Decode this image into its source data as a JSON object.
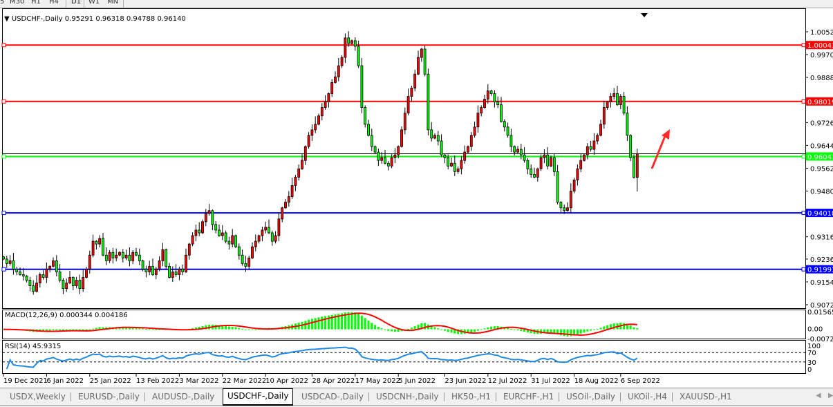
{
  "toolbar": {
    "items": [
      "5",
      "M30",
      "H1",
      "H4",
      "D1",
      "W1",
      "MN"
    ],
    "active": "D1"
  },
  "chart_header": {
    "symbol": "USDCHF-,Daily",
    "open": "0.95291",
    "high": "0.96318",
    "low": "0.94788",
    "close": "0.96140"
  },
  "colors": {
    "bull_candle": "#ff0000",
    "bear_candle": "#00ff00",
    "candle_outline": "#000000",
    "macd_histogram": "#00ff00",
    "macd_signal": "#ff0000",
    "rsi_line": "#1e88e5"
  },
  "chart_data": {
    "type": "candlestick",
    "ylim": [
      0.90596,
      1.01363
    ],
    "price_ticks": [
      "1.00520",
      "0.99700",
      "0.98880",
      "0.97260",
      "0.96440",
      "0.95620",
      "0.94800",
      "0.93160",
      "0.92360",
      "0.91540",
      "0.90720"
    ],
    "last_bar": {
      "open": 0.95291,
      "high": 0.96318,
      "low": 0.94788,
      "close": 0.9614
    },
    "closes": [
      0.9236,
      0.922,
      0.923,
      0.92,
      0.919,
      0.918,
      0.9175,
      0.916,
      0.914,
      0.912,
      0.915,
      0.918,
      0.917,
      0.92,
      0.921,
      0.923,
      0.919,
      0.916,
      0.913,
      0.915,
      0.917,
      0.914,
      0.916,
      0.913,
      0.917,
      0.92,
      0.925,
      0.93,
      0.929,
      0.931,
      0.925,
      0.923,
      0.926,
      0.924,
      0.925,
      0.926,
      0.924,
      0.925,
      0.923,
      0.926,
      0.925,
      0.923,
      0.92,
      0.919,
      0.921,
      0.918,
      0.92,
      0.923,
      0.927,
      0.921,
      0.917,
      0.919,
      0.918,
      0.92,
      0.919,
      0.925,
      0.929,
      0.932,
      0.934,
      0.933,
      0.937,
      0.94,
      0.941,
      0.936,
      0.934,
      0.932,
      0.933,
      0.93,
      0.929,
      0.932,
      0.928,
      0.925,
      0.922,
      0.921,
      0.924,
      0.928,
      0.93,
      0.932,
      0.934,
      0.935,
      0.933,
      0.93,
      0.932,
      0.938,
      0.942,
      0.944,
      0.946,
      0.95,
      0.953,
      0.956,
      0.959,
      0.964,
      0.968,
      0.97,
      0.972,
      0.975,
      0.978,
      0.98,
      0.983,
      0.987,
      0.989,
      0.993,
      0.996,
      1.003,
      1.001,
      1.002,
      1.0,
      0.993,
      0.978,
      0.972,
      0.968,
      0.964,
      0.962,
      0.959,
      0.96,
      0.958,
      0.957,
      0.96,
      0.961,
      0.964,
      0.97,
      0.976,
      0.982,
      0.985,
      0.99,
      0.996,
      0.999,
      0.99,
      0.97,
      0.967,
      0.968,
      0.966,
      0.961,
      0.96,
      0.957,
      0.958,
      0.955,
      0.956,
      0.959,
      0.962,
      0.964,
      0.968,
      0.971,
      0.976,
      0.978,
      0.981,
      0.984,
      0.983,
      0.98,
      0.979,
      0.973,
      0.971,
      0.968,
      0.964,
      0.962,
      0.963,
      0.961,
      0.959,
      0.956,
      0.954,
      0.953,
      0.956,
      0.96,
      0.961,
      0.957,
      0.96,
      0.955,
      0.944,
      0.942,
      0.941,
      0.942,
      0.948,
      0.952,
      0.956,
      0.959,
      0.961,
      0.964,
      0.963,
      0.966,
      0.968,
      0.972,
      0.978,
      0.98,
      0.982,
      0.983,
      0.979,
      0.982,
      0.976,
      0.968,
      0.96,
      0.9529,
      0.9614
    ],
    "date_ticks": [
      {
        "bar": 0,
        "label": "19 Dec 2021"
      },
      {
        "bar": 13,
        "label": "6 Jan 2022"
      },
      {
        "bar": 26,
        "label": "25 Jan 2022"
      },
      {
        "bar": 40,
        "label": "13 Feb 2022"
      },
      {
        "bar": 53,
        "label": "3 Mar 2022"
      },
      {
        "bar": 66,
        "label": "22 Mar 2022"
      },
      {
        "bar": 79,
        "label": "10 Apr 2022"
      },
      {
        "bar": 93,
        "label": "28 Apr 2022"
      },
      {
        "bar": 106,
        "label": "17 May 2022"
      },
      {
        "bar": 119,
        "label": "5 Jun 2022"
      },
      {
        "bar": 133,
        "label": "23 Jun 2022"
      },
      {
        "bar": 146,
        "label": "12 Jul 2022"
      },
      {
        "bar": 159,
        "label": "31 Jul 2022"
      },
      {
        "bar": 172,
        "label": "18 Aug 2022"
      },
      {
        "bar": 186,
        "label": "6 Sep 2022"
      }
    ],
    "levels": [
      {
        "price": 1.00043,
        "label": "1.00043",
        "color": "#ff0000"
      },
      {
        "price": 0.98019,
        "label": "0.98019",
        "color": "#ff0000"
      },
      {
        "price": 0.96043,
        "label": "0.96043",
        "color": "#00ff00"
      },
      {
        "price": 0.94018,
        "label": "0.94018",
        "color": "#0000ff"
      },
      {
        "price": 0.91993,
        "label": "0.91993",
        "color": "#0000ff"
      }
    ],
    "annotation": {
      "type": "arrow",
      "direction": "up",
      "color": "#ff2a2a"
    }
  },
  "macd": {
    "label": "MACD(12,26,9) 0.000344 0.004186",
    "axis": [
      "0.015654",
      "0.00",
      "-0.00725"
    ],
    "ylim": [
      -0.0085,
      0.0175
    ]
  },
  "rsi": {
    "label": "RSI(14) 45.9315",
    "axis": [
      "100",
      "70",
      "30",
      "0"
    ],
    "levels": [
      70,
      30
    ]
  },
  "tabs": [
    {
      "label": "USDX,Weekly"
    },
    {
      "label": "EURUSD-,Daily"
    },
    {
      "label": "AUDUSD-,Daily"
    },
    {
      "label": "USDCHF-,Daily",
      "active": true
    },
    {
      "label": "USDCAD-,Daily"
    },
    {
      "label": "USDCNH-,Daily"
    },
    {
      "label": "HK50-,H1"
    },
    {
      "label": "EURCHF-,H1"
    },
    {
      "label": "USOil-,Daily"
    },
    {
      "label": "UKOil-,H4"
    },
    {
      "label": "XAUUSD-,H1"
    }
  ],
  "tab_scroll": {
    "left": "◀",
    "right": "▶"
  }
}
